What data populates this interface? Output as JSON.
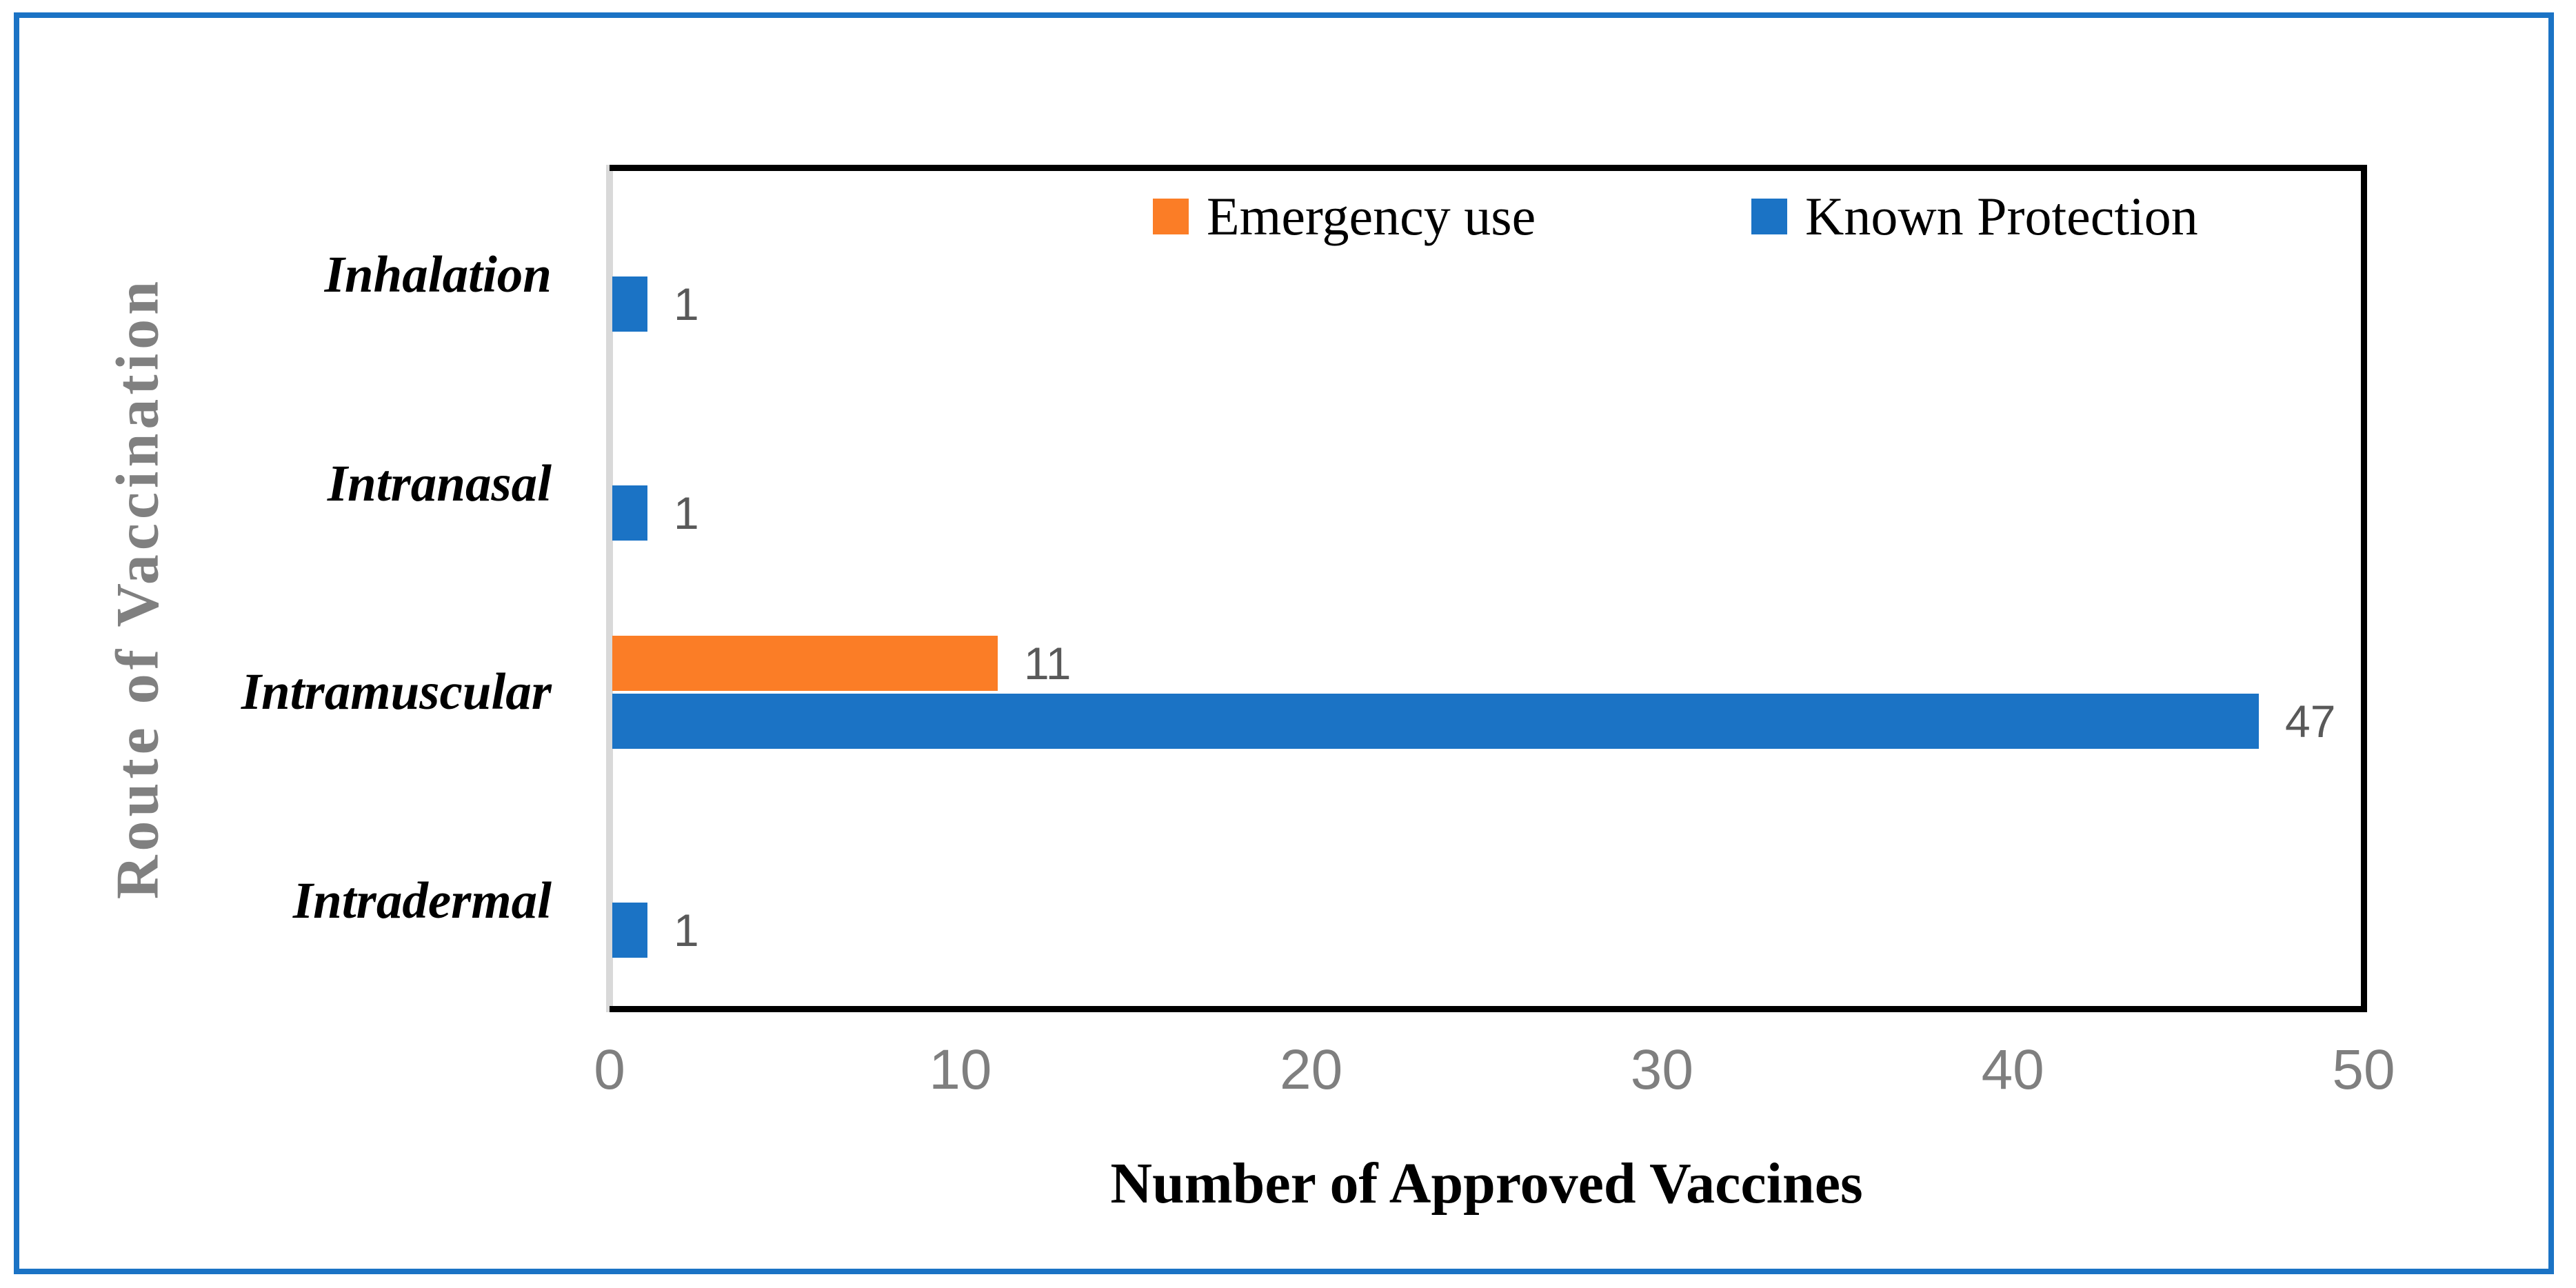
{
  "figure": {
    "outer_border_color": "#1B73C5",
    "plot_border_color": "#000000",
    "axis_line_color": "#D9D9D9",
    "background_color": "#FFFFFF"
  },
  "chart_data": {
    "type": "bar",
    "orientation": "horizontal",
    "title": "",
    "xlabel": "Number of Approved Vaccines",
    "ylabel": "Route of Vaccination",
    "categories": [
      "Inhalation",
      "Intranasal",
      "Intramuscular",
      "Intradermal"
    ],
    "series": [
      {
        "name": "Emergency use",
        "color": "#FB7D26",
        "values": [
          0,
          0,
          11,
          0
        ]
      },
      {
        "name": "Known Protection",
        "color": "#1B73C5",
        "values": [
          1,
          1,
          47,
          1
        ]
      }
    ],
    "data_labels_shown": [
      "1",
      "1",
      "11",
      "47",
      "1"
    ],
    "xlim": [
      0,
      50
    ],
    "xticks": [
      "0",
      "10",
      "20",
      "30",
      "40",
      "50"
    ],
    "grid": false,
    "legend_position": "top-inside",
    "data_label_color": "#595959",
    "tick_label_color": "#7F7F7F",
    "category_label_color": "#000000",
    "xlabel_color": "#000000",
    "ylabel_color": "#808080"
  }
}
